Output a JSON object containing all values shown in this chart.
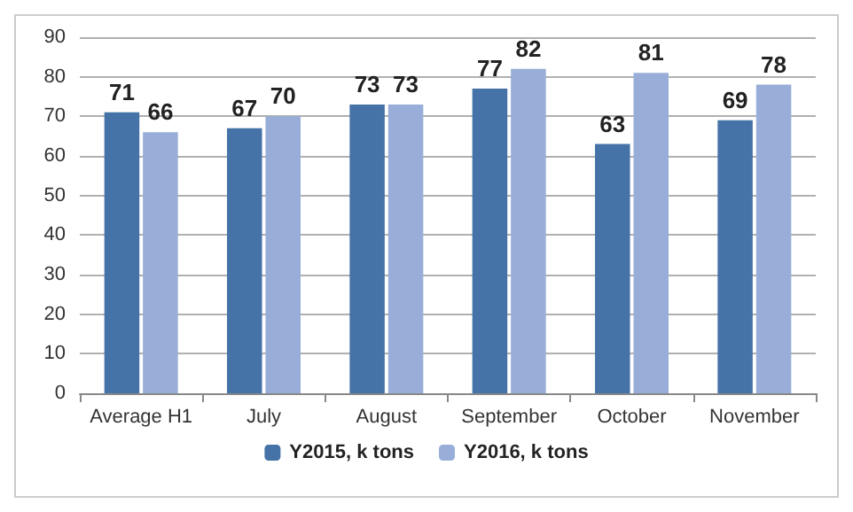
{
  "chart_data": {
    "type": "bar",
    "categories": [
      "Average H1",
      "July",
      "August",
      "September",
      "October",
      "November"
    ],
    "series": [
      {
        "name": "Y2015, k tons",
        "color": "#4572a7",
        "values": [
          71,
          67,
          73,
          77,
          63,
          69
        ]
      },
      {
        "name": "Y2016, k tons",
        "color": "#98aed8",
        "values": [
          66,
          70,
          73,
          82,
          81,
          78
        ]
      }
    ],
    "ylim": [
      0,
      90
    ],
    "yticks": [
      0,
      10,
      20,
      30,
      40,
      50,
      60,
      70,
      80,
      90
    ],
    "grid": "y",
    "legend": "bottom",
    "data_labels": true
  }
}
